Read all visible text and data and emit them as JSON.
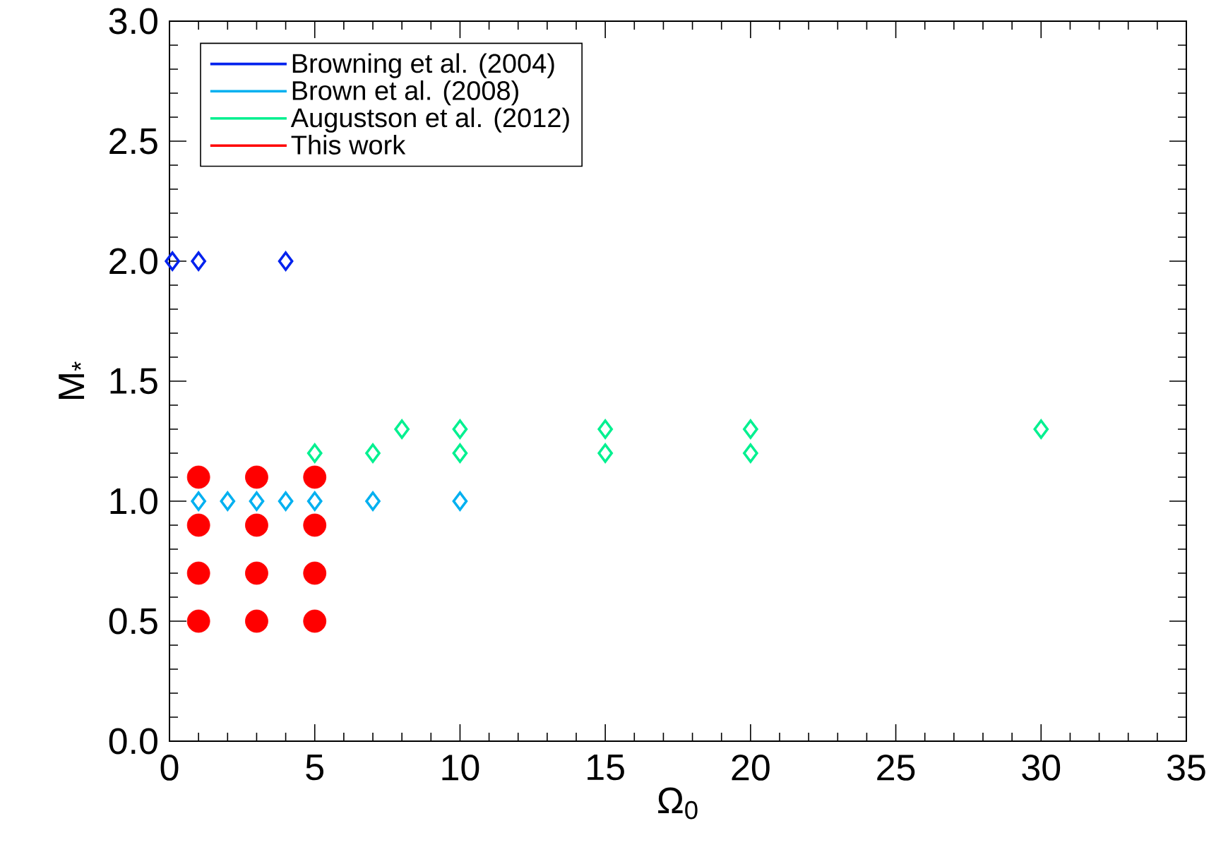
{
  "chart_data": {
    "type": "scatter",
    "xlabel": "Ω$_{0}$",
    "ylabel": "M$_{*}$",
    "xlim": [
      0,
      35
    ],
    "ylim": [
      0,
      3
    ],
    "xticks": [
      0,
      5,
      10,
      15,
      20,
      25,
      30,
      35
    ],
    "yticks": [
      {
        "value": 0,
        "label": "0.0"
      },
      {
        "value": 0.5,
        "label": "0.5"
      },
      {
        "value": 1,
        "label": "1.0"
      },
      {
        "value": 1.5,
        "label": "1.5"
      },
      {
        "value": 2,
        "label": "2.0"
      },
      {
        "value": 2.5,
        "label": "2.5"
      },
      {
        "value": 3,
        "label": "3.0"
      }
    ],
    "grid": false,
    "legend": "top left",
    "series": [
      {
        "name": "Browning et al. (2004)",
        "color": "#0022ee",
        "marker": "diamond",
        "x": [
          0.1,
          1,
          4
        ],
        "values": [
          2,
          2,
          2
        ]
      },
      {
        "name": "Brown et al. (2008)",
        "color": "#00b0f0",
        "marker": "diamond",
        "x": [
          1,
          2,
          3,
          4,
          5,
          7,
          10
        ],
        "values": [
          1,
          1,
          1,
          1,
          1,
          1,
          1
        ]
      },
      {
        "name": "Augustson et al. (2012)",
        "color": "#00f090",
        "marker": "diamond",
        "x": [
          5,
          7,
          8,
          10,
          10,
          15,
          15,
          20,
          20,
          30
        ],
        "values": [
          1.2,
          1.2,
          1.3,
          1.3,
          1.2,
          1.3,
          1.2,
          1.3,
          1.2,
          1.3
        ]
      },
      {
        "name": "This work",
        "color": "#ff0000",
        "marker": "circle",
        "x": [
          1,
          1,
          1,
          1,
          3,
          3,
          3,
          3,
          5,
          5,
          5,
          5
        ],
        "values": [
          0.5,
          0.7,
          0.9,
          1.1,
          0.5,
          0.7,
          0.9,
          1.1,
          0.5,
          0.7,
          0.9,
          1.1
        ]
      }
    ]
  }
}
